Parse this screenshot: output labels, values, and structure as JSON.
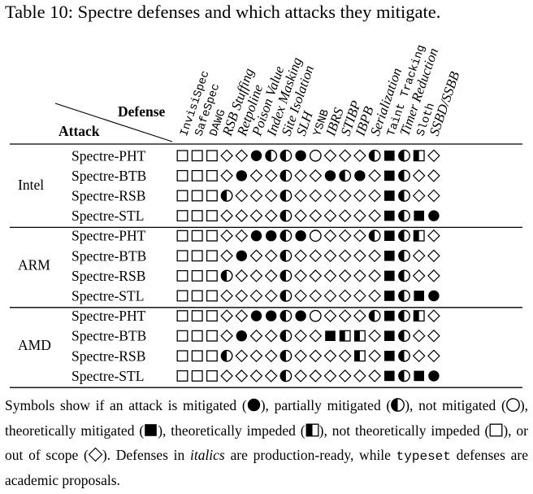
{
  "caption": "Table 10: Spectre defenses and which attacks they mitigate.",
  "corner": {
    "defense_label": "Defense",
    "attack_label": "Attack"
  },
  "defenses": [
    {
      "name": "InvisiSpec",
      "style": "typeset"
    },
    {
      "name": "SafeSpec",
      "style": "typeset"
    },
    {
      "name": "DAWG",
      "style": "typeset"
    },
    {
      "name": "RSB Stuffing",
      "style": "italic"
    },
    {
      "name": "Retpoline",
      "style": "italic"
    },
    {
      "name": "Poison Value",
      "style": "italic"
    },
    {
      "name": "Index Masking",
      "style": "italic"
    },
    {
      "name": "Site Isolation",
      "style": "italic"
    },
    {
      "name": "SLH",
      "style": "italic"
    },
    {
      "name": "YSNB",
      "style": "typeset"
    },
    {
      "name": "IBRS",
      "style": "italic"
    },
    {
      "name": "STIBP",
      "style": "italic"
    },
    {
      "name": "IBPB",
      "style": "italic"
    },
    {
      "name": "Serialization",
      "style": "italic"
    },
    {
      "name": "Taint Tracking",
      "style": "typeset"
    },
    {
      "name": "Timer Reduction",
      "style": "italic"
    },
    {
      "name": "Sloth",
      "style": "typeset"
    },
    {
      "name": "SSBD/SSBB",
      "style": "italic"
    }
  ],
  "groups": [
    {
      "vendor": "Intel",
      "rows": [
        {
          "attack": "Spectre-PHT",
          "cells": [
            "E",
            "E",
            "E",
            "D",
            "D",
            "F",
            "P",
            "P",
            "F",
            "N",
            "D",
            "D",
            "D",
            "P",
            "T",
            "P",
            "I",
            "D"
          ]
        },
        {
          "attack": "Spectre-BTB",
          "cells": [
            "E",
            "E",
            "E",
            "D",
            "F",
            "D",
            "D",
            "P",
            "D",
            "D",
            "F",
            "P",
            "F",
            "D",
            "T",
            "P",
            "D",
            "D"
          ]
        },
        {
          "attack": "Spectre-RSB",
          "cells": [
            "E",
            "E",
            "E",
            "P",
            "D",
            "D",
            "D",
            "P",
            "D",
            "D",
            "D",
            "D",
            "D",
            "D",
            "T",
            "P",
            "D",
            "D"
          ]
        },
        {
          "attack": "Spectre-STL",
          "cells": [
            "E",
            "E",
            "E",
            "D",
            "D",
            "D",
            "D",
            "P",
            "D",
            "D",
            "D",
            "D",
            "D",
            "D",
            "T",
            "P",
            "T",
            "F"
          ]
        }
      ]
    },
    {
      "vendor": "ARM",
      "rows": [
        {
          "attack": "Spectre-PHT",
          "cells": [
            "E",
            "E",
            "E",
            "D",
            "D",
            "F",
            "F",
            "P",
            "F",
            "N",
            "D",
            "D",
            "D",
            "P",
            "T",
            "P",
            "I",
            "D"
          ]
        },
        {
          "attack": "Spectre-BTB",
          "cells": [
            "E",
            "E",
            "E",
            "D",
            "F",
            "D",
            "D",
            "P",
            "D",
            "D",
            "D",
            "D",
            "D",
            "D",
            "T",
            "P",
            "D",
            "D"
          ]
        },
        {
          "attack": "Spectre-RSB",
          "cells": [
            "E",
            "E",
            "E",
            "P",
            "D",
            "D",
            "D",
            "P",
            "D",
            "D",
            "D",
            "D",
            "D",
            "D",
            "T",
            "P",
            "D",
            "D"
          ]
        },
        {
          "attack": "Spectre-STL",
          "cells": [
            "E",
            "E",
            "E",
            "D",
            "D",
            "D",
            "D",
            "P",
            "D",
            "D",
            "D",
            "D",
            "D",
            "D",
            "T",
            "P",
            "T",
            "F"
          ]
        }
      ]
    },
    {
      "vendor": "AMD",
      "rows": [
        {
          "attack": "Spectre-PHT",
          "cells": [
            "E",
            "E",
            "E",
            "D",
            "D",
            "F",
            "F",
            "P",
            "F",
            "N",
            "D",
            "D",
            "D",
            "P",
            "T",
            "P",
            "I",
            "D"
          ]
        },
        {
          "attack": "Spectre-BTB",
          "cells": [
            "E",
            "E",
            "E",
            "D",
            "F",
            "D",
            "D",
            "P",
            "D",
            "D",
            "T",
            "I",
            "I",
            "D",
            "T",
            "P",
            "D",
            "D"
          ]
        },
        {
          "attack": "Spectre-RSB",
          "cells": [
            "E",
            "E",
            "E",
            "P",
            "D",
            "D",
            "D",
            "P",
            "D",
            "D",
            "D",
            "D",
            "I",
            "D",
            "T",
            "P",
            "D",
            "D"
          ]
        },
        {
          "attack": "Spectre-STL",
          "cells": [
            "E",
            "E",
            "E",
            "D",
            "D",
            "D",
            "D",
            "P",
            "D",
            "D",
            "D",
            "D",
            "D",
            "D",
            "T",
            "P",
            "T",
            "F"
          ]
        }
      ]
    }
  ],
  "legend_symbols": {
    "F": "mitigated",
    "P": "partially mitigated",
    "N": "not mitigated",
    "T": "theoretically mitigated",
    "I": "theoretically impeded",
    "E": "not theoretically impeded",
    "D": "out of scope"
  },
  "footnote": {
    "t1": "Symbols show if an attack is mitigated (",
    "t2": "), partially mitigated (",
    "t3": "), not mitigated (",
    "t4": "), theoretically mitigated (",
    "t5": "), theoretically impeded (",
    "t6": "), not theoretically impeded (",
    "t7": "), or out of scope (",
    "t8": "). Defenses in ",
    "italics_word": "italics",
    "t9": " are production-ready, while ",
    "typeset_word": "typeset",
    "t10": " defenses are academic proposals."
  }
}
